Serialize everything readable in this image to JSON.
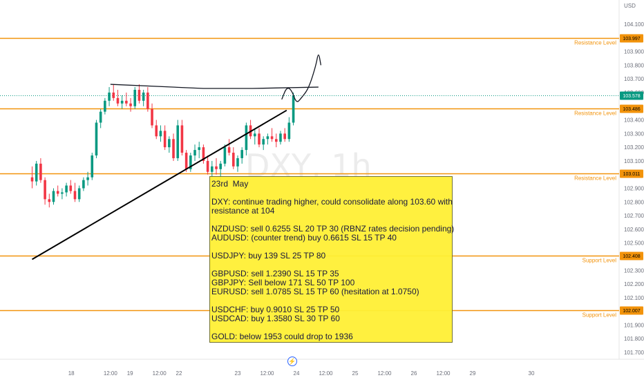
{
  "chart_data": {
    "type": "candlestick",
    "symbol_watermark": "DXY, 1h",
    "currency_label": "USD",
    "y_ticks": [
      104.1,
      104.0,
      103.9,
      103.8,
      103.7,
      103.6,
      103.5,
      103.4,
      103.3,
      103.2,
      103.1,
      103.0,
      102.9,
      102.8,
      102.7,
      102.6,
      102.5,
      102.4,
      102.3,
      102.2,
      102.1,
      102.0,
      101.9,
      101.8,
      101.7
    ],
    "y_tick_labels": [
      "104.100",
      "",
      "103.900",
      "103.800",
      "103.700",
      "103.600",
      "",
      "103.400",
      "103.300",
      "103.200",
      "103.100",
      "",
      "102.900",
      "102.800",
      "102.700",
      "102.600",
      "102.500",
      "",
      "102.300",
      "102.200",
      "102.100",
      "",
      "101.900",
      "101.800",
      "101.700"
    ],
    "ylim": [
      101.68,
      104.27
    ],
    "x_ticks": [
      {
        "label": "18",
        "t": -44
      },
      {
        "label": "12:00",
        "t": -28
      },
      {
        "label": "19",
        "t": -20
      },
      {
        "label": "12:00",
        "t": -8
      },
      {
        "label": "22",
        "t": 0
      },
      {
        "label": "23",
        "t": 24
      },
      {
        "label": "12:00",
        "t": 36
      },
      {
        "label": "24",
        "t": 48
      },
      {
        "label": "12:00",
        "t": 60
      },
      {
        "label": "25",
        "t": 72
      },
      {
        "label": "12:00",
        "t": 84
      },
      {
        "label": "26",
        "t": 96
      },
      {
        "label": "12:00",
        "t": 108
      },
      {
        "label": "29",
        "t": 120
      },
      {
        "label": "30",
        "t": 144
      }
    ],
    "levels": [
      {
        "name": "Resistance Level",
        "price": 103.997,
        "tag": "103.997"
      },
      {
        "name": "Resistance Level",
        "price": 103.486,
        "tag": "103.486"
      },
      {
        "name": "Resistance Level",
        "price": 103.011,
        "tag": "103.011"
      },
      {
        "name": "Support Level",
        "price": 102.408,
        "tag": "102.408"
      },
      {
        "name": "Support Level",
        "price": 102.007,
        "tag": "102.007"
      }
    ],
    "current_price": {
      "price": 103.578,
      "tag": "103.578"
    },
    "trendline": [
      {
        "t": -60,
        "price": 102.38
      },
      {
        "t": 44,
        "price": 103.47
      }
    ],
    "resistance_curve": [
      {
        "t": -28,
        "price": 103.66
      },
      {
        "t": 10,
        "price": 103.63
      },
      {
        "t": 30,
        "price": 103.63
      },
      {
        "t": 57,
        "price": 103.64
      }
    ],
    "projection": [
      {
        "t": 42,
        "price": 103.55
      },
      {
        "t": 44,
        "price": 103.64
      },
      {
        "t": 46,
        "price": 103.62
      },
      {
        "t": 48,
        "price": 103.52
      },
      {
        "t": 50,
        "price": 103.56
      },
      {
        "t": 53,
        "price": 103.63
      },
      {
        "t": 56,
        "price": 103.8
      },
      {
        "t": 57,
        "price": 103.9
      },
      {
        "t": 58,
        "price": 103.8
      }
    ],
    "candles": [
      {
        "o": 102.98,
        "h": 103.06,
        "l": 102.9,
        "c": 102.95
      },
      {
        "o": 102.95,
        "h": 103.1,
        "l": 102.92,
        "c": 103.08
      },
      {
        "o": 103.08,
        "h": 103.12,
        "l": 102.94,
        "c": 102.96
      },
      {
        "o": 102.96,
        "h": 102.98,
        "l": 102.78,
        "c": 102.82
      },
      {
        "o": 102.82,
        "h": 102.86,
        "l": 102.76,
        "c": 102.8
      },
      {
        "o": 102.8,
        "h": 102.9,
        "l": 102.78,
        "c": 102.88
      },
      {
        "o": 102.88,
        "h": 102.92,
        "l": 102.84,
        "c": 102.86
      },
      {
        "o": 102.86,
        "h": 102.9,
        "l": 102.82,
        "c": 102.87
      },
      {
        "o": 102.87,
        "h": 102.94,
        "l": 102.84,
        "c": 102.92
      },
      {
        "o": 102.92,
        "h": 102.96,
        "l": 102.86,
        "c": 102.88
      },
      {
        "o": 102.88,
        "h": 102.94,
        "l": 102.8,
        "c": 102.82
      },
      {
        "o": 102.82,
        "h": 102.92,
        "l": 102.8,
        "c": 102.9
      },
      {
        "o": 102.9,
        "h": 102.98,
        "l": 102.88,
        "c": 102.96
      },
      {
        "o": 102.96,
        "h": 103.02,
        "l": 102.92,
        "c": 102.98
      },
      {
        "o": 102.98,
        "h": 103.16,
        "l": 102.96,
        "c": 103.14
      },
      {
        "o": 103.14,
        "h": 103.4,
        "l": 103.12,
        "c": 103.38
      },
      {
        "o": 103.38,
        "h": 103.48,
        "l": 103.34,
        "c": 103.46
      },
      {
        "o": 103.46,
        "h": 103.56,
        "l": 103.44,
        "c": 103.54
      },
      {
        "o": 103.54,
        "h": 103.64,
        "l": 103.5,
        "c": 103.6
      },
      {
        "o": 103.6,
        "h": 103.66,
        "l": 103.54,
        "c": 103.56
      },
      {
        "o": 103.56,
        "h": 103.62,
        "l": 103.5,
        "c": 103.52
      },
      {
        "o": 103.52,
        "h": 103.58,
        "l": 103.48,
        "c": 103.54
      },
      {
        "o": 103.54,
        "h": 103.6,
        "l": 103.5,
        "c": 103.52
      },
      {
        "o": 103.52,
        "h": 103.56,
        "l": 103.46,
        "c": 103.5
      },
      {
        "o": 103.5,
        "h": 103.64,
        "l": 103.48,
        "c": 103.62
      },
      {
        "o": 103.62,
        "h": 103.66,
        "l": 103.52,
        "c": 103.54
      },
      {
        "o": 103.54,
        "h": 103.62,
        "l": 103.5,
        "c": 103.6
      },
      {
        "o": 103.6,
        "h": 103.64,
        "l": 103.46,
        "c": 103.48
      },
      {
        "o": 103.48,
        "h": 103.52,
        "l": 103.34,
        "c": 103.36
      },
      {
        "o": 103.36,
        "h": 103.4,
        "l": 103.26,
        "c": 103.28
      },
      {
        "o": 103.28,
        "h": 103.36,
        "l": 103.24,
        "c": 103.32
      },
      {
        "o": 103.32,
        "h": 103.36,
        "l": 103.18,
        "c": 103.2
      },
      {
        "o": 103.2,
        "h": 103.28,
        "l": 103.16,
        "c": 103.26
      },
      {
        "o": 103.26,
        "h": 103.3,
        "l": 103.1,
        "c": 103.12
      },
      {
        "o": 103.12,
        "h": 103.4,
        "l": 103.1,
        "c": 103.36
      },
      {
        "o": 103.36,
        "h": 103.4,
        "l": 103.14,
        "c": 103.16
      },
      {
        "o": 103.16,
        "h": 103.18,
        "l": 103.02,
        "c": 103.04
      },
      {
        "o": 103.04,
        "h": 103.16,
        "l": 103.02,
        "c": 103.14
      },
      {
        "o": 103.14,
        "h": 103.22,
        "l": 103.1,
        "c": 103.18
      },
      {
        "o": 103.18,
        "h": 103.24,
        "l": 103.12,
        "c": 103.2
      },
      {
        "o": 103.2,
        "h": 103.22,
        "l": 103.08,
        "c": 103.1
      },
      {
        "o": 103.1,
        "h": 103.14,
        "l": 103.0,
        "c": 103.02
      },
      {
        "o": 103.02,
        "h": 103.1,
        "l": 102.98,
        "c": 103.06
      },
      {
        "o": 103.06,
        "h": 103.12,
        "l": 103.0,
        "c": 103.04
      },
      {
        "o": 103.04,
        "h": 103.1,
        "l": 102.96,
        "c": 103.08
      },
      {
        "o": 103.08,
        "h": 103.22,
        "l": 103.06,
        "c": 103.2
      },
      {
        "o": 103.2,
        "h": 103.26,
        "l": 103.14,
        "c": 103.16
      },
      {
        "o": 103.16,
        "h": 103.2,
        "l": 103.04,
        "c": 103.06
      },
      {
        "o": 103.06,
        "h": 103.14,
        "l": 103.02,
        "c": 103.12
      },
      {
        "o": 103.12,
        "h": 103.2,
        "l": 103.08,
        "c": 103.18
      },
      {
        "o": 103.18,
        "h": 103.38,
        "l": 103.14,
        "c": 103.36
      },
      {
        "o": 103.36,
        "h": 103.4,
        "l": 103.26,
        "c": 103.28
      },
      {
        "o": 103.28,
        "h": 103.34,
        "l": 103.22,
        "c": 103.3
      },
      {
        "o": 103.3,
        "h": 103.34,
        "l": 103.2,
        "c": 103.22
      },
      {
        "o": 103.22,
        "h": 103.28,
        "l": 103.18,
        "c": 103.26
      },
      {
        "o": 103.26,
        "h": 103.3,
        "l": 103.22,
        "c": 103.28
      },
      {
        "o": 103.28,
        "h": 103.34,
        "l": 103.24,
        "c": 103.26
      },
      {
        "o": 103.26,
        "h": 103.3,
        "l": 103.2,
        "c": 103.24
      },
      {
        "o": 103.24,
        "h": 103.32,
        "l": 103.22,
        "c": 103.3
      },
      {
        "o": 103.3,
        "h": 103.34,
        "l": 103.24,
        "c": 103.26
      },
      {
        "o": 103.26,
        "h": 103.42,
        "l": 103.24,
        "c": 103.38
      },
      {
        "o": 103.38,
        "h": 103.6,
        "l": 103.36,
        "c": 103.58
      }
    ],
    "candle_start_t": -60,
    "candle_step_t": 1.75,
    "up_color": "#089981",
    "down_color": "#f23645",
    "level_color": "#f2930b",
    "trendline_color": "#000000"
  },
  "note": {
    "lines": [
      "23rd  May",
      "",
      "DXY: continue trading higher, could consolidate along 103.60 with",
      "resistance at 104",
      "",
      "NZDUSD: sell 0.6255 SL 20 TP 30 (RBNZ rates decision pending)",
      "AUDUSD: (counter trend) buy 0.6615 SL 15 TP 40",
      "",
      "USDJPY: buy 139 SL 25 TP 80",
      "",
      "GBPUSD: sell 1.2390 SL 15 TP 35",
      "GBPJPY: Sell below 171 SL 50 TP 100",
      "EURUSD: sell 1.0785 SL 15 TP 60 (hesitation at 1.0750)",
      "",
      "USDCHF: buy 0.9010 SL 25 TP 50",
      "USDCAD: buy 1.3580 SL 30 TP 60",
      "",
      "GOLD: below 1953 could drop to 1936"
    ]
  },
  "icons": {
    "bolt": "lightning-icon"
  }
}
